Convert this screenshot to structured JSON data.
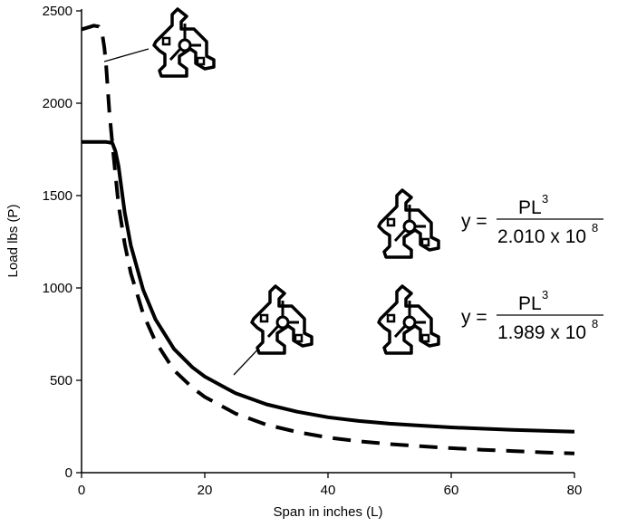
{
  "chart_data": {
    "type": "line",
    "xlabel": "Span in inches (L)",
    "ylabel": "Load lbs (P)",
    "xlim": [
      0,
      80
    ],
    "ylim": [
      0,
      2500
    ],
    "x_ticks": [
      "0",
      "20",
      "40",
      "60",
      "80"
    ],
    "y_ticks": [
      "0",
      "500",
      "1000",
      "1500",
      "2000",
      "2500"
    ],
    "grid": false,
    "series": [
      {
        "style": "solid",
        "color": "#000000",
        "x": [
          0,
          2,
          4,
          5,
          5.5,
          6,
          7,
          8,
          10,
          12,
          15,
          18,
          20,
          25,
          30,
          35,
          40,
          45,
          50,
          55,
          60,
          65,
          70,
          75,
          80
        ],
        "y": [
          1790,
          1790,
          1790,
          1785,
          1740,
          1660,
          1410,
          1230,
          990,
          830,
          670,
          570,
          520,
          430,
          370,
          330,
          300,
          280,
          265,
          255,
          245,
          238,
          232,
          227,
          222
        ]
      },
      {
        "style": "dashed",
        "color": "#000000",
        "x": [
          0,
          1,
          2,
          2.8,
          3.3,
          3.7,
          4,
          4.5,
          5,
          6,
          7,
          8,
          10,
          12,
          15,
          18,
          20,
          25,
          30,
          35,
          40,
          45,
          50,
          55,
          60,
          65,
          70,
          75,
          80
        ],
        "y": [
          2400,
          2410,
          2420,
          2415,
          2390,
          2300,
          2200,
          1960,
          1780,
          1450,
          1240,
          1080,
          860,
          710,
          555,
          460,
          410,
          320,
          260,
          220,
          190,
          170,
          155,
          143,
          133,
          124,
          117,
          110,
          104
        ]
      }
    ],
    "annotations": {
      "eq1": {
        "prefix": "y =",
        "numerator": "PL",
        "num_sup": "3",
        "denominator": "2.010 x 10",
        "den_sup": "8"
      },
      "eq2": {
        "prefix": "y =",
        "numerator": "PL",
        "num_sup": "3",
        "denominator": "1.989 x 10",
        "den_sup": "8"
      }
    }
  }
}
